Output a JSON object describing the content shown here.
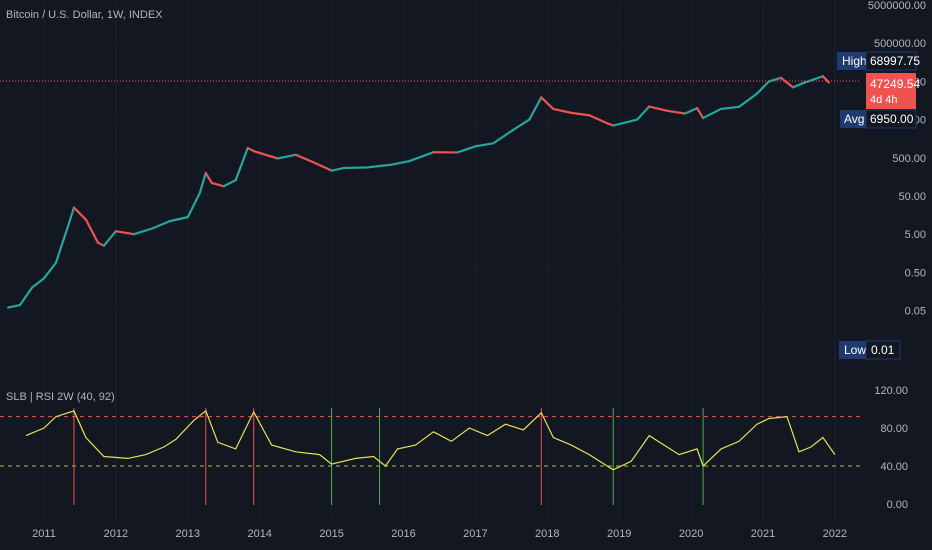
{
  "header": {
    "symbol_title": "Bitcoin / U.S. Dollar, 1W, INDEX"
  },
  "indicator": {
    "title": "SLB | RSI 2W (40, 92)"
  },
  "labels": {
    "high_label": "High",
    "high_value": "68997.75",
    "last_value": "47249.54",
    "last_countdown": "4d 4h",
    "avg_label": "Avg",
    "avg_value": "6950.00",
    "low_label": "Low",
    "low_value": "0.01"
  },
  "colors": {
    "background": "#131722",
    "up": "#26a69a",
    "down": "#ef5350",
    "rsi_line": "#e6e05a",
    "upper_band": "#ef5350",
    "lower_band": "#9acd32",
    "sell_signal": "#ef5350",
    "buy_signal": "#4caf50",
    "tag_blue": "#1e3a6e"
  },
  "chart_data": [
    {
      "type": "line",
      "title": "Bitcoin / U.S. Dollar, 1W, INDEX",
      "y_scale": "log",
      "y_tick_labels": [
        "5000000.00",
        "500000.00",
        "50000.00",
        "5000.00",
        "500.00",
        "50.00",
        "5.00",
        "0.50",
        "0.05"
      ],
      "x_tick_labels": [
        "2011",
        "2012",
        "2013",
        "2014",
        "2015",
        "2016",
        "2017",
        "2018",
        "2019",
        "2020",
        "2021",
        "2022"
      ],
      "series": [
        {
          "x": [
            "2010-07",
            "2010-09",
            "2010-11",
            "2011-01",
            "2011-03",
            "2011-05",
            "2011-06",
            "2011-08",
            "2011-10",
            "2011-11",
            "2012-01",
            "2012-04",
            "2012-07",
            "2012-10",
            "2013-01",
            "2013-03",
            "2013-04",
            "2013-05",
            "2013-07",
            "2013-09",
            "2013-11",
            "2013-12",
            "2014-02",
            "2014-04",
            "2014-07",
            "2014-10",
            "2015-01",
            "2015-03",
            "2015-07",
            "2015-11",
            "2016-02",
            "2016-06",
            "2016-10",
            "2017-01",
            "2017-04",
            "2017-07",
            "2017-10",
            "2017-12",
            "2018-02",
            "2018-05",
            "2018-08",
            "2018-11",
            "2018-12",
            "2019-04",
            "2019-06",
            "2019-09",
            "2019-12",
            "2020-02",
            "2020-03",
            "2020-06",
            "2020-09",
            "2020-12",
            "2021-02",
            "2021-04",
            "2021-06",
            "2021-08",
            "2021-11",
            "2021-12"
          ],
          "values": [
            0.06,
            0.07,
            0.2,
            0.35,
            0.9,
            8,
            25,
            12,
            3,
            2.5,
            6,
            5,
            7,
            11,
            14,
            60,
            200,
            110,
            90,
            130,
            900,
            750,
            600,
            480,
            600,
            380,
            230,
            270,
            280,
            330,
            410,
            700,
            690,
            1000,
            1200,
            2500,
            5000,
            19000,
            9500,
            7500,
            6500,
            4000,
            3500,
            5000,
            11000,
            8500,
            7200,
            10000,
            5500,
            9500,
            10800,
            24000,
            50000,
            62000,
            35000,
            47000,
            68000,
            47000
          ]
        }
      ],
      "annotations": {
        "high": 68997.75,
        "last": 47249.54,
        "avg": 6950.0,
        "low": 0.01
      }
    },
    {
      "type": "line",
      "title": "SLB | RSI 2W (40, 92)",
      "ylim": [
        0,
        120
      ],
      "y_tick_labels": [
        "120.00",
        "80.00",
        "40.00",
        "0.00"
      ],
      "bands": {
        "upper": 92,
        "lower": 40
      },
      "series": [
        {
          "x": [
            "2010-10",
            "2011-01",
            "2011-03",
            "2011-06",
            "2011-08",
            "2011-11",
            "2012-03",
            "2012-06",
            "2012-09",
            "2012-11",
            "2013-02",
            "2013-04",
            "2013-06",
            "2013-09",
            "2013-12",
            "2014-03",
            "2014-07",
            "2014-11",
            "2015-01",
            "2015-05",
            "2015-08",
            "2015-10",
            "2015-12",
            "2016-03",
            "2016-06",
            "2016-09",
            "2016-12",
            "2017-03",
            "2017-06",
            "2017-09",
            "2017-12",
            "2018-02",
            "2018-05",
            "2018-08",
            "2018-12",
            "2019-03",
            "2019-06",
            "2019-09",
            "2019-11",
            "2020-02",
            "2020-03",
            "2020-06",
            "2020-09",
            "2020-12",
            "2021-02",
            "2021-05",
            "2021-07",
            "2021-09",
            "2021-11",
            "2022-01"
          ],
          "values": [
            72,
            80,
            92,
            98,
            70,
            50,
            48,
            52,
            60,
            68,
            88,
            98,
            65,
            58,
            97,
            62,
            55,
            52,
            42,
            48,
            50,
            40,
            58,
            62,
            76,
            66,
            80,
            72,
            84,
            78,
            96,
            70,
            62,
            52,
            36,
            45,
            72,
            60,
            52,
            58,
            40,
            58,
            66,
            84,
            90,
            92,
            55,
            60,
            70,
            52
          ]
        }
      ],
      "sell_signals": [
        "2011-06",
        "2013-04",
        "2013-12",
        "2017-12"
      ],
      "buy_signals": [
        "2015-01",
        "2015-09",
        "2018-12",
        "2020-03"
      ]
    }
  ]
}
